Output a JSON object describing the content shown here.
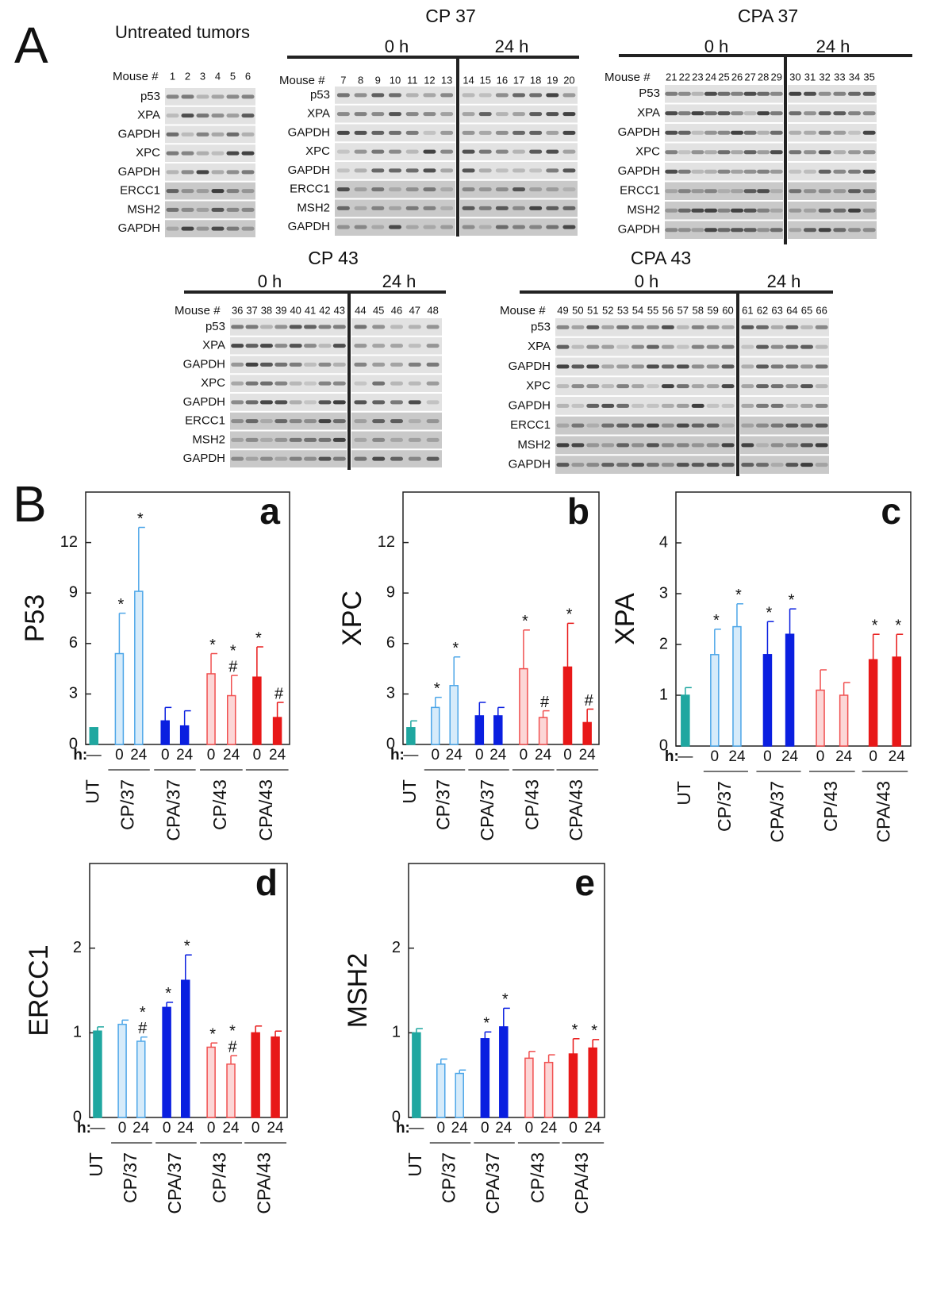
{
  "panel_a": {
    "label": "A",
    "blots": [
      {
        "title": "Untreated tumors",
        "mouse_label": "Mouse #",
        "mice_0h": [
          1,
          2,
          3,
          4,
          5,
          6
        ],
        "rows": [
          "p53",
          "XPA",
          "GAPDH",
          "XPC",
          "GAPDH",
          "ERCC1",
          "MSH2",
          "GAPDH"
        ]
      },
      {
        "title": "CP 37",
        "times": [
          "0 h",
          "24 h"
        ],
        "mouse_label": "Mouse #",
        "mice_0h": [
          7,
          8,
          9,
          10,
          11,
          12,
          13
        ],
        "mice_24h": [
          14,
          15,
          16,
          17,
          18,
          19,
          20
        ],
        "rows": [
          "p53",
          "XPA",
          "GAPDH",
          "XPC",
          "GAPDH",
          "ERCC1",
          "MSH2",
          "GAPDH"
        ]
      },
      {
        "title": "CPA 37",
        "times": [
          "0 h",
          "24 h"
        ],
        "mouse_label": "Mouse #",
        "mice_0h": [
          21,
          22,
          23,
          24,
          25,
          26,
          27,
          28,
          29
        ],
        "mice_24h": [
          30,
          31,
          32,
          33,
          34,
          35
        ],
        "rows": [
          "P53",
          "XPA",
          "GAPDH",
          "XPC",
          "GAPDH",
          "ERCC1",
          "MSH2",
          "GAPDH"
        ]
      },
      {
        "title": "CP 43",
        "times": [
          "0 h",
          "24 h"
        ],
        "mouse_label": "Mouse #",
        "mice_0h": [
          36,
          37,
          38,
          39,
          40,
          41,
          42,
          43
        ],
        "mice_24h": [
          44,
          45,
          46,
          47,
          48
        ],
        "rows": [
          "p53",
          "XPA",
          "GAPDH",
          "XPC",
          "GAPDH",
          "ERCC1",
          "MSH2",
          "GAPDH"
        ]
      },
      {
        "title": "CPA 43",
        "times": [
          "0 h",
          "24 h"
        ],
        "mouse_label": "Mouse #",
        "mice_0h": [
          49,
          50,
          51,
          52,
          53,
          54,
          55,
          56,
          57,
          58,
          59,
          60
        ],
        "mice_24h": [
          61,
          62,
          63,
          64,
          65,
          66
        ],
        "rows": [
          "p53",
          "XPA",
          "GAPDH",
          "XPC",
          "GAPDH",
          "ERCC1",
          "MSH2",
          "GAPDH"
        ]
      }
    ]
  },
  "panel_b_label": "B",
  "chart_data": [
    {
      "type": "bar",
      "panel": "a",
      "ylabel": "P53",
      "ylim": [
        0,
        15
      ],
      "yticks": [
        0,
        3,
        6,
        9,
        12
      ],
      "x_prefix": "h:",
      "series": [
        {
          "name": "UT",
          "color": "#1fa7a0",
          "fill": "#1fa7a0",
          "hours": [
            "—"
          ],
          "values": [
            1.0
          ],
          "errors": [
            null
          ],
          "annotations": [
            []
          ]
        },
        {
          "name": "CP/37",
          "color": "#4da6e8",
          "fill": "#d6ebfa",
          "hours": [
            "0",
            "24"
          ],
          "values": [
            5.4,
            9.1
          ],
          "errors": [
            2.4,
            3.8
          ],
          "annotations": [
            [
              "*"
            ],
            [
              "*"
            ]
          ]
        },
        {
          "name": "CPA/37",
          "color": "#0a1fe0",
          "fill": "#0a1fe0",
          "hours": [
            "0",
            "24"
          ],
          "values": [
            1.4,
            1.1
          ],
          "errors": [
            0.8,
            0.9
          ],
          "annotations": [
            [],
            []
          ]
        },
        {
          "name": "CP/43",
          "color": "#f05050",
          "fill": "#fcd6d6",
          "hours": [
            "0",
            "24"
          ],
          "values": [
            4.2,
            2.9
          ],
          "errors": [
            1.2,
            1.2
          ],
          "annotations": [
            [
              "*"
            ],
            [
              "*",
              "#"
            ]
          ]
        },
        {
          "name": "CPA/43",
          "color": "#e81818",
          "fill": "#e81818",
          "hours": [
            "0",
            "24"
          ],
          "values": [
            4.0,
            1.6
          ],
          "errors": [
            1.8,
            0.9
          ],
          "annotations": [
            [
              "*"
            ],
            [
              "#"
            ]
          ]
        }
      ]
    },
    {
      "type": "bar",
      "panel": "b",
      "ylabel": "XPC",
      "ylim": [
        0,
        15
      ],
      "yticks": [
        0,
        3,
        6,
        9,
        12
      ],
      "x_prefix": "h:",
      "series": [
        {
          "name": "UT",
          "color": "#1fa7a0",
          "fill": "#1fa7a0",
          "hours": [
            "—"
          ],
          "values": [
            1.0
          ],
          "errors": [
            0.4
          ],
          "annotations": [
            []
          ]
        },
        {
          "name": "CP/37",
          "color": "#4da6e8",
          "fill": "#d6ebfa",
          "hours": [
            "0",
            "24"
          ],
          "values": [
            2.2,
            3.5
          ],
          "errors": [
            0.6,
            1.7
          ],
          "annotations": [
            [
              "*"
            ],
            [
              "*"
            ]
          ]
        },
        {
          "name": "CPA/37",
          "color": "#0a1fe0",
          "fill": "#0a1fe0",
          "hours": [
            "0",
            "24"
          ],
          "values": [
            1.7,
            1.7
          ],
          "errors": [
            0.8,
            0.5
          ],
          "annotations": [
            [],
            []
          ]
        },
        {
          "name": "CP/43",
          "color": "#f05050",
          "fill": "#fcd6d6",
          "hours": [
            "0",
            "24"
          ],
          "values": [
            4.5,
            1.6
          ],
          "errors": [
            2.3,
            0.4
          ],
          "annotations": [
            [
              "*"
            ],
            [
              "#"
            ]
          ]
        },
        {
          "name": "CPA/43",
          "color": "#e81818",
          "fill": "#e81818",
          "hours": [
            "0",
            "24"
          ],
          "values": [
            4.6,
            1.3
          ],
          "errors": [
            2.6,
            0.8
          ],
          "annotations": [
            [
              "*"
            ],
            [
              "#"
            ]
          ]
        }
      ]
    },
    {
      "type": "bar",
      "panel": "c",
      "ylabel": "XPA",
      "ylim": [
        0,
        5
      ],
      "yticks": [
        0,
        1,
        2,
        3,
        4
      ],
      "x_prefix": "h:",
      "series": [
        {
          "name": "UT",
          "color": "#1fa7a0",
          "fill": "#1fa7a0",
          "hours": [
            "—"
          ],
          "values": [
            1.0
          ],
          "errors": [
            0.15
          ],
          "annotations": [
            []
          ]
        },
        {
          "name": "CP/37",
          "color": "#4da6e8",
          "fill": "#d6ebfa",
          "hours": [
            "0",
            "24"
          ],
          "values": [
            1.8,
            2.35
          ],
          "errors": [
            0.5,
            0.45
          ],
          "annotations": [
            [
              "*"
            ],
            [
              "*"
            ]
          ]
        },
        {
          "name": "CPA/37",
          "color": "#0a1fe0",
          "fill": "#0a1fe0",
          "hours": [
            "0",
            "24"
          ],
          "values": [
            1.8,
            2.2
          ],
          "errors": [
            0.65,
            0.5
          ],
          "annotations": [
            [
              "*"
            ],
            [
              "*"
            ]
          ]
        },
        {
          "name": "CP/43",
          "color": "#f05050",
          "fill": "#fcd6d6",
          "hours": [
            "0",
            "24"
          ],
          "values": [
            1.1,
            1.0
          ],
          "errors": [
            0.4,
            0.25
          ],
          "annotations": [
            [],
            []
          ]
        },
        {
          "name": "CPA/43",
          "color": "#e81818",
          "fill": "#e81818",
          "hours": [
            "0",
            "24"
          ],
          "values": [
            1.7,
            1.75
          ],
          "errors": [
            0.5,
            0.45
          ],
          "annotations": [
            [
              "*"
            ],
            [
              "*"
            ]
          ]
        }
      ]
    },
    {
      "type": "bar",
      "panel": "d",
      "ylabel": "ERCC1",
      "ylim": [
        0,
        3
      ],
      "yticks": [
        0,
        1,
        2
      ],
      "x_prefix": "h:",
      "series": [
        {
          "name": "UT",
          "color": "#1fa7a0",
          "fill": "#1fa7a0",
          "hours": [
            "—"
          ],
          "values": [
            1.02
          ],
          "errors": [
            0.05
          ],
          "annotations": [
            []
          ]
        },
        {
          "name": "CP/37",
          "color": "#4da6e8",
          "fill": "#d6ebfa",
          "hours": [
            "0",
            "24"
          ],
          "values": [
            1.1,
            0.9
          ],
          "errors": [
            0.05,
            0.05
          ],
          "annotations": [
            [],
            [
              "*",
              "#"
            ]
          ]
        },
        {
          "name": "CPA/37",
          "color": "#0a1fe0",
          "fill": "#0a1fe0",
          "hours": [
            "0",
            "24"
          ],
          "values": [
            1.3,
            1.62
          ],
          "errors": [
            0.06,
            0.3
          ],
          "annotations": [
            [
              "*"
            ],
            [
              "*"
            ]
          ]
        },
        {
          "name": "CP/43",
          "color": "#f05050",
          "fill": "#fcd6d6",
          "hours": [
            "0",
            "24"
          ],
          "values": [
            0.83,
            0.63
          ],
          "errors": [
            0.05,
            0.1
          ],
          "annotations": [
            [
              "*"
            ],
            [
              "*",
              "#"
            ]
          ]
        },
        {
          "name": "CPA/43",
          "color": "#e81818",
          "fill": "#e81818",
          "hours": [
            "0",
            "24"
          ],
          "values": [
            1.0,
            0.95
          ],
          "errors": [
            0.08,
            0.07
          ],
          "annotations": [
            [],
            []
          ]
        }
      ]
    },
    {
      "type": "bar",
      "panel": "e",
      "ylabel": "MSH2",
      "ylim": [
        0,
        3
      ],
      "yticks": [
        0,
        1,
        2
      ],
      "x_prefix": "h:",
      "series": [
        {
          "name": "UT",
          "color": "#1fa7a0",
          "fill": "#1fa7a0",
          "hours": [
            "—"
          ],
          "values": [
            1.0
          ],
          "errors": [
            0.05
          ],
          "annotations": [
            []
          ]
        },
        {
          "name": "CP/37",
          "color": "#4da6e8",
          "fill": "#d6ebfa",
          "hours": [
            "0",
            "24"
          ],
          "values": [
            0.63,
            0.52
          ],
          "errors": [
            0.06,
            0.04
          ],
          "annotations": [
            [],
            []
          ]
        },
        {
          "name": "CPA/37",
          "color": "#0a1fe0",
          "fill": "#0a1fe0",
          "hours": [
            "0",
            "24"
          ],
          "values": [
            0.93,
            1.07
          ],
          "errors": [
            0.08,
            0.22
          ],
          "annotations": [
            [
              "*"
            ],
            [
              "*"
            ]
          ]
        },
        {
          "name": "CP/43",
          "color": "#f05050",
          "fill": "#fcd6d6",
          "hours": [
            "0",
            "24"
          ],
          "values": [
            0.7,
            0.65
          ],
          "errors": [
            0.08,
            0.09
          ],
          "annotations": [
            [],
            []
          ]
        },
        {
          "name": "CPA/43",
          "color": "#e81818",
          "fill": "#e81818",
          "hours": [
            "0",
            "24"
          ],
          "values": [
            0.75,
            0.82
          ],
          "errors": [
            0.18,
            0.1
          ],
          "annotations": [
            [
              "*"
            ],
            [
              "*"
            ]
          ]
        }
      ]
    }
  ]
}
